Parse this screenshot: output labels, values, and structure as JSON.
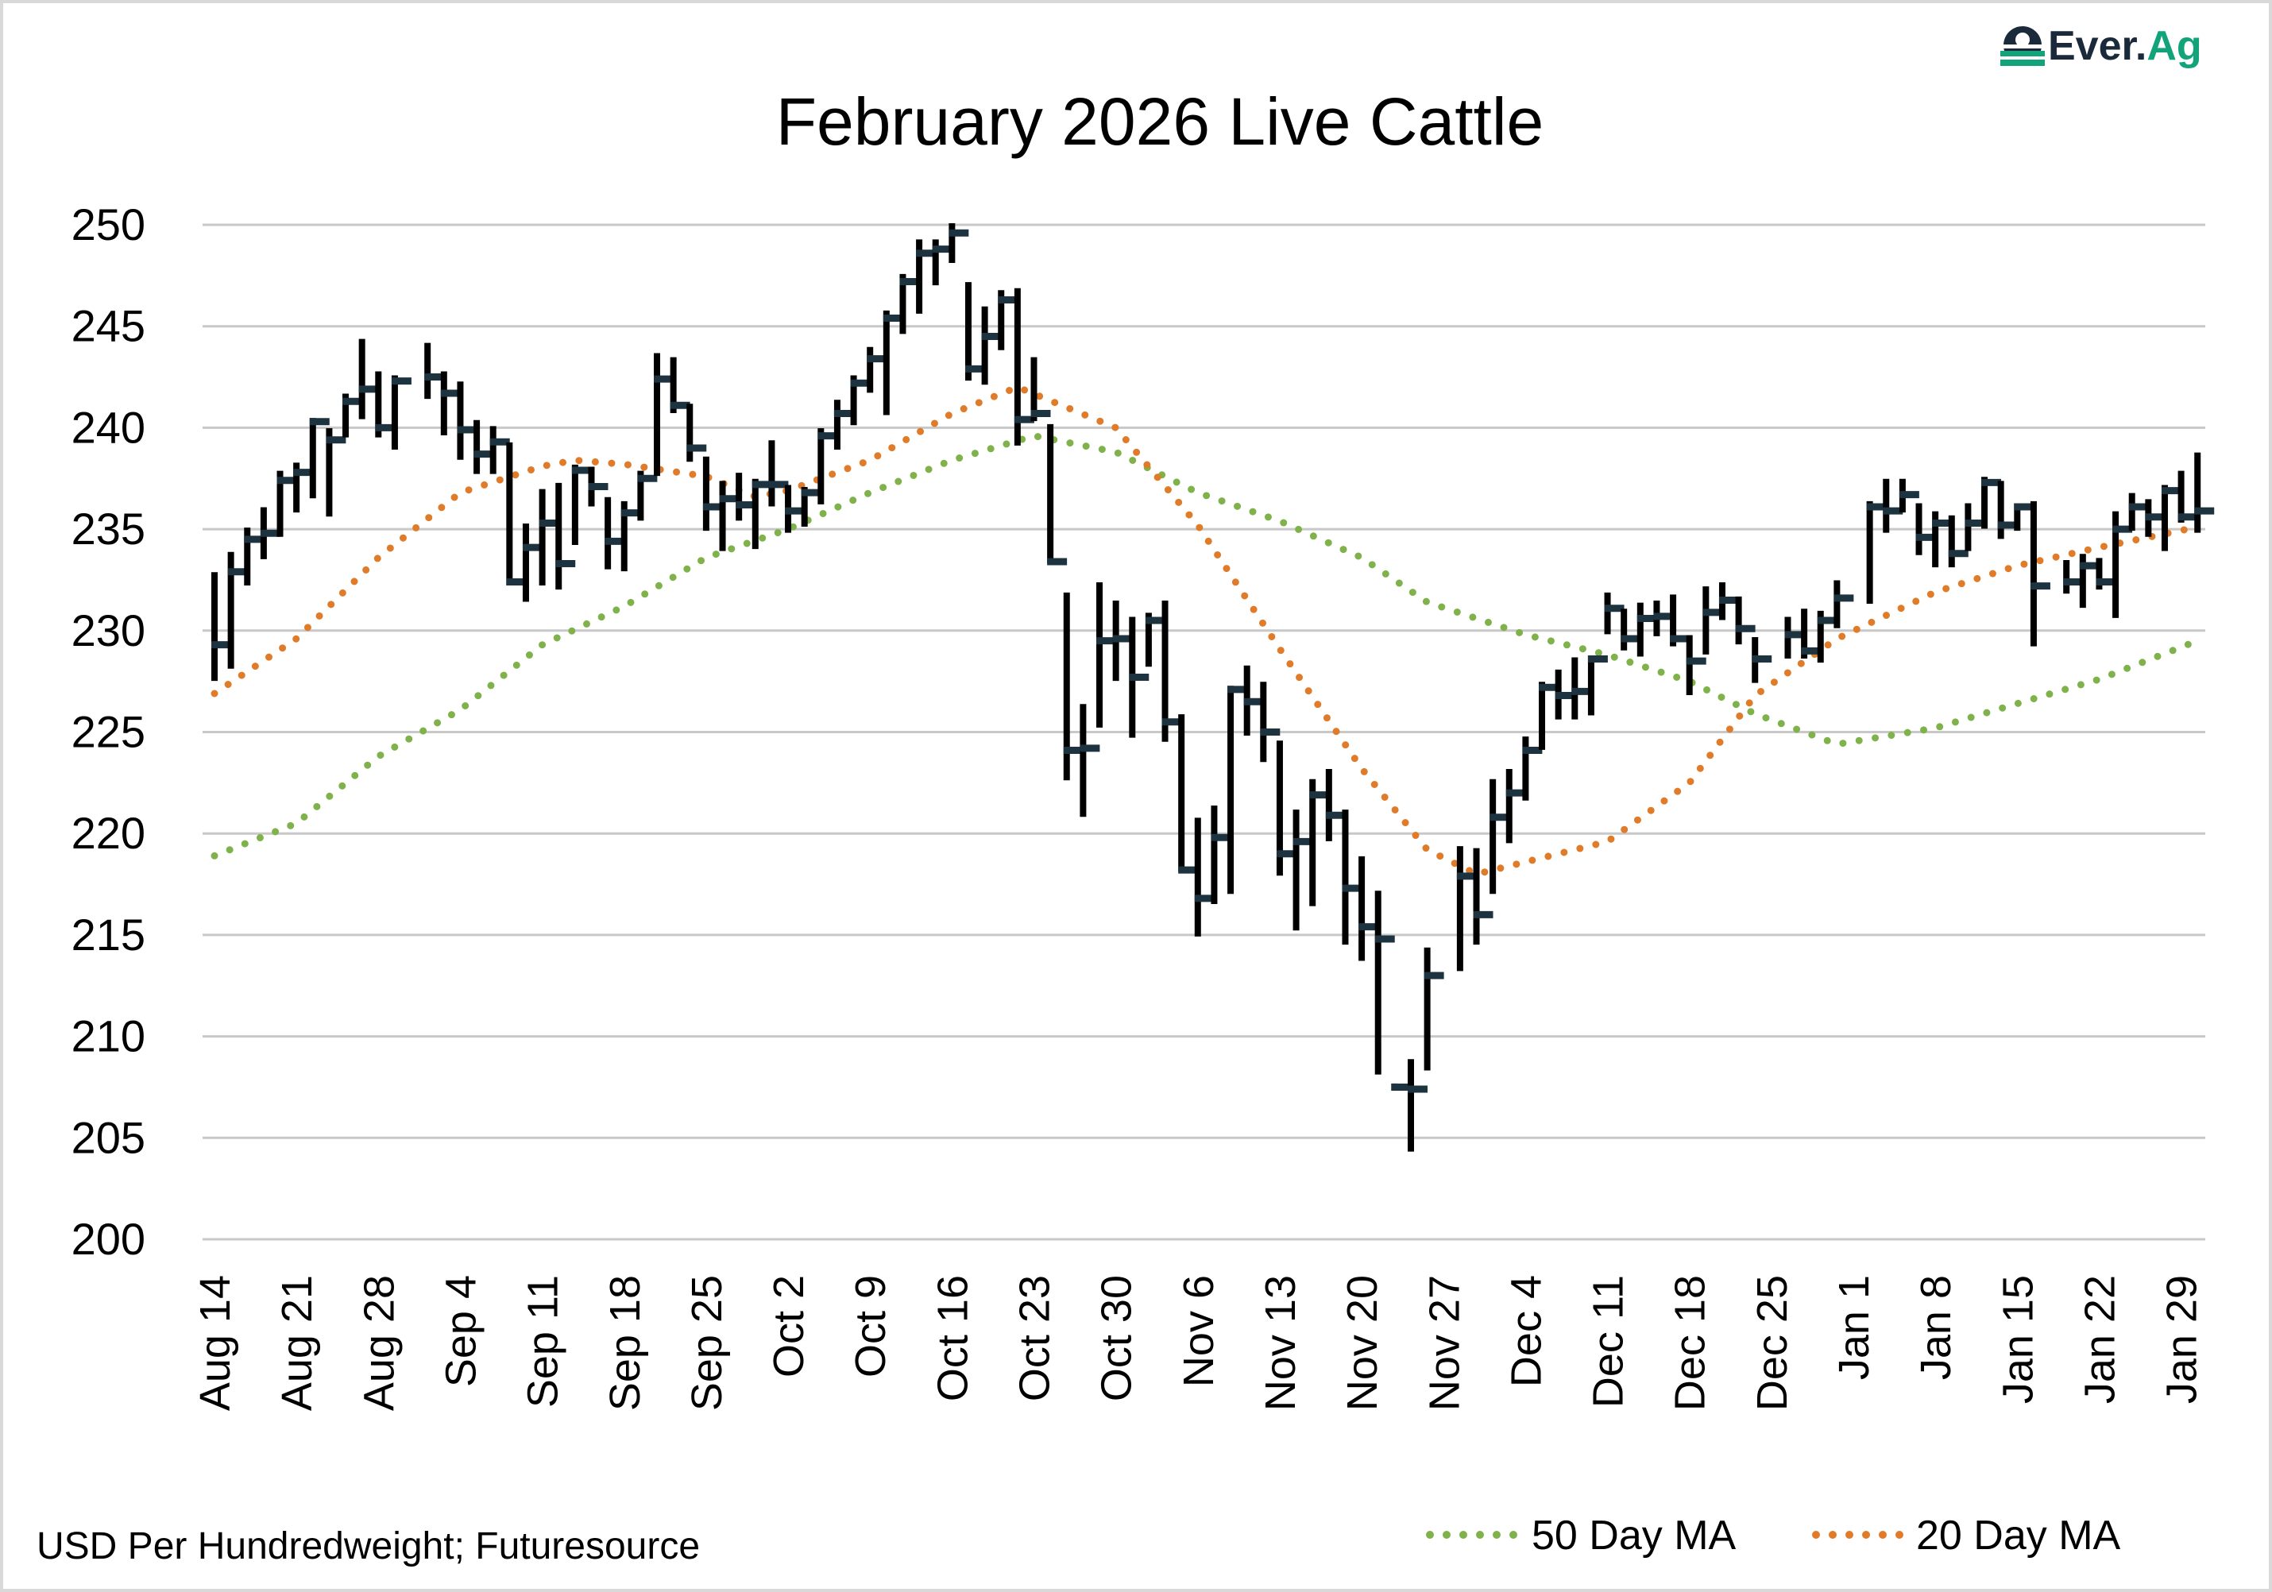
{
  "logo": {
    "text_dark": "Ever.",
    "text_green": "Ag",
    "colors": {
      "dark": "#1b2a3a",
      "green": "#12a37a"
    }
  },
  "chart_data": {
    "type": "ohlc-bar",
    "title": "February 2026 Live Cattle",
    "source_note": "USD Per Hundredweight; Futuresource",
    "ylim": [
      200,
      250
    ],
    "yticks": [
      200,
      205,
      210,
      215,
      220,
      225,
      230,
      235,
      240,
      245,
      250
    ],
    "grid": true,
    "legend_position": "bottom-right",
    "xticks": [
      {
        "date": "2025-08-14",
        "label": "Aug 14"
      },
      {
        "date": "2025-08-21",
        "label": "Aug 21"
      },
      {
        "date": "2025-08-28",
        "label": "Aug 28"
      },
      {
        "date": "2025-09-04",
        "label": "Sep 4"
      },
      {
        "date": "2025-09-11",
        "label": "Sep 11"
      },
      {
        "date": "2025-09-18",
        "label": "Sep 18"
      },
      {
        "date": "2025-09-25",
        "label": "Sep 25"
      },
      {
        "date": "2025-10-02",
        "label": "Oct 2"
      },
      {
        "date": "2025-10-09",
        "label": "Oct 9"
      },
      {
        "date": "2025-10-16",
        "label": "Oct 16"
      },
      {
        "date": "2025-10-23",
        "label": "Oct 23"
      },
      {
        "date": "2025-10-30",
        "label": "Oct 30"
      },
      {
        "date": "2025-11-06",
        "label": "Nov 6"
      },
      {
        "date": "2025-11-13",
        "label": "Nov 13"
      },
      {
        "date": "2025-11-20",
        "label": "Nov 20"
      },
      {
        "date": "2025-11-27",
        "label": "Nov 27"
      },
      {
        "date": "2025-12-04",
        "label": "Dec 4"
      },
      {
        "date": "2025-12-11",
        "label": "Dec 11"
      },
      {
        "date": "2025-12-18",
        "label": "Dec 18"
      },
      {
        "date": "2025-12-25",
        "label": "Dec 25"
      },
      {
        "date": "2026-01-01",
        "label": "Jan 1"
      },
      {
        "date": "2026-01-08",
        "label": "Jan 8"
      },
      {
        "date": "2026-01-15",
        "label": "Jan 15"
      },
      {
        "date": "2026-01-22",
        "label": "Jan 22"
      },
      {
        "date": "2026-01-29",
        "label": "Jan 29"
      }
    ],
    "bar_fields": [
      "date",
      "high",
      "low",
      "close"
    ],
    "bars": [
      [
        "2025-08-14",
        232.8,
        227.6,
        229.3
      ],
      [
        "2025-08-15",
        233.8,
        228.2,
        232.9
      ],
      [
        "2025-08-18",
        235.0,
        232.3,
        234.5
      ],
      [
        "2025-08-19",
        236.0,
        233.6,
        234.8
      ],
      [
        "2025-08-20",
        237.8,
        234.7,
        237.4
      ],
      [
        "2025-08-21",
        238.2,
        235.9,
        237.8
      ],
      [
        "2025-08-22",
        240.4,
        236.6,
        240.3
      ],
      [
        "2025-08-25",
        239.9,
        235.7,
        239.4
      ],
      [
        "2025-08-26",
        241.6,
        239.6,
        241.3
      ],
      [
        "2025-08-27",
        244.3,
        240.5,
        241.9
      ],
      [
        "2025-08-28",
        242.7,
        239.6,
        240.0
      ],
      [
        "2025-08-29",
        242.5,
        239.0,
        242.3
      ],
      [
        "2025-09-02",
        244.1,
        241.5,
        242.5
      ],
      [
        "2025-09-03",
        242.7,
        239.7,
        241.7
      ],
      [
        "2025-09-04",
        242.2,
        238.5,
        239.9
      ],
      [
        "2025-09-05",
        240.3,
        237.8,
        238.7
      ],
      [
        "2025-09-08",
        240.0,
        237.8,
        239.3
      ],
      [
        "2025-09-09",
        239.2,
        232.3,
        232.4
      ],
      [
        "2025-09-10",
        235.2,
        231.5,
        234.1
      ],
      [
        "2025-09-11",
        236.9,
        232.3,
        235.3
      ],
      [
        "2025-09-12",
        237.2,
        232.1,
        233.3
      ],
      [
        "2025-09-15",
        238.1,
        234.3,
        237.9
      ],
      [
        "2025-09-16",
        238.0,
        236.2,
        237.1
      ],
      [
        "2025-09-17",
        236.5,
        233.1,
        234.4
      ],
      [
        "2025-09-18",
        236.3,
        233.0,
        235.8
      ],
      [
        "2025-09-19",
        237.8,
        235.5,
        237.5
      ],
      [
        "2025-09-22",
        243.6,
        237.7,
        242.4
      ],
      [
        "2025-09-23",
        243.4,
        240.8,
        241.1
      ],
      [
        "2025-09-24",
        241.1,
        238.4,
        239.0
      ],
      [
        "2025-09-25",
        238.5,
        235.0,
        236.1
      ],
      [
        "2025-09-26",
        237.3,
        234.0,
        236.5
      ],
      [
        "2025-09-29",
        237.7,
        235.5,
        236.2
      ],
      [
        "2025-09-30",
        237.4,
        234.1,
        237.2
      ],
      [
        "2025-10-01",
        239.3,
        236.2,
        237.2
      ],
      [
        "2025-10-02",
        237.1,
        234.9,
        235.9
      ],
      [
        "2025-10-03",
        237.0,
        235.2,
        236.8
      ],
      [
        "2025-10-06",
        239.9,
        236.3,
        239.6
      ],
      [
        "2025-10-07",
        241.3,
        239.0,
        240.7
      ],
      [
        "2025-10-08",
        242.5,
        240.2,
        242.2
      ],
      [
        "2025-10-09",
        243.9,
        241.8,
        243.4
      ],
      [
        "2025-10-10",
        245.7,
        240.7,
        245.4
      ],
      [
        "2025-10-13",
        247.5,
        244.7,
        247.2
      ],
      [
        "2025-10-14",
        249.2,
        245.7,
        248.6
      ],
      [
        "2025-10-15",
        249.2,
        247.1,
        248.8
      ],
      [
        "2025-10-16",
        250.0,
        248.2,
        249.6
      ],
      [
        "2025-10-17",
        247.1,
        242.4,
        242.9
      ],
      [
        "2025-10-20",
        245.9,
        242.2,
        244.5
      ],
      [
        "2025-10-21",
        246.7,
        243.9,
        246.3
      ],
      [
        "2025-10-22",
        246.8,
        239.2,
        240.4
      ],
      [
        "2025-10-23",
        243.4,
        240.4,
        240.7
      ],
      [
        "2025-10-24",
        240.1,
        233.4,
        233.4
      ],
      [
        "2025-10-27",
        231.8,
        222.7,
        224.1
      ],
      [
        "2025-10-28",
        226.3,
        220.9,
        224.2
      ],
      [
        "2025-10-29",
        232.3,
        225.3,
        229.5
      ],
      [
        "2025-10-30",
        231.4,
        227.6,
        229.6
      ],
      [
        "2025-10-31",
        230.6,
        224.8,
        227.7
      ],
      [
        "2025-11-03",
        230.8,
        228.3,
        230.5
      ],
      [
        "2025-11-04",
        231.4,
        224.6,
        225.5
      ],
      [
        "2025-11-05",
        225.8,
        218.2,
        218.2
      ],
      [
        "2025-11-06",
        220.7,
        215.0,
        216.8
      ],
      [
        "2025-11-07",
        221.3,
        216.6,
        219.8
      ],
      [
        "2025-11-10",
        227.2,
        217.1,
        227.1
      ],
      [
        "2025-11-11",
        228.2,
        224.9,
        226.5
      ],
      [
        "2025-11-12",
        227.4,
        223.6,
        225.0
      ],
      [
        "2025-11-13",
        224.5,
        218.0,
        219.0
      ],
      [
        "2025-11-14",
        221.1,
        215.3,
        219.6
      ],
      [
        "2025-11-17",
        222.6,
        216.5,
        221.9
      ],
      [
        "2025-11-18",
        223.1,
        219.7,
        220.9
      ],
      [
        "2025-11-19",
        221.1,
        214.6,
        217.3
      ],
      [
        "2025-11-20",
        218.8,
        213.8,
        215.4
      ],
      [
        "2025-11-21",
        217.1,
        208.2,
        214.8
      ],
      [
        "2025-11-24",
        207.6,
        207.4,
        207.5
      ],
      [
        "2025-11-25",
        208.8,
        204.4,
        207.4
      ],
      [
        "2025-11-26",
        214.3,
        208.4,
        213.0
      ],
      [
        "2025-11-28",
        219.3,
        213.3,
        217.9
      ],
      [
        "2025-12-01",
        219.2,
        214.6,
        216.0
      ],
      [
        "2025-12-02",
        222.6,
        217.1,
        220.8
      ],
      [
        "2025-12-03",
        223.1,
        219.6,
        222.0
      ],
      [
        "2025-12-04",
        224.7,
        221.7,
        224.1
      ],
      [
        "2025-12-05",
        227.4,
        224.2,
        227.2
      ],
      [
        "2025-12-08",
        228.0,
        225.7,
        226.8
      ],
      [
        "2025-12-09",
        228.6,
        225.7,
        227.0
      ],
      [
        "2025-12-10",
        228.7,
        225.9,
        228.6
      ],
      [
        "2025-12-11",
        231.8,
        229.9,
        231.1
      ],
      [
        "2025-12-12",
        231.0,
        229.1,
        229.6
      ],
      [
        "2025-12-15",
        231.3,
        228.8,
        230.6
      ],
      [
        "2025-12-16",
        231.4,
        229.8,
        230.7
      ],
      [
        "2025-12-17",
        231.7,
        229.3,
        229.6
      ],
      [
        "2025-12-18",
        229.7,
        226.9,
        228.5
      ],
      [
        "2025-12-19",
        232.1,
        228.9,
        230.9
      ],
      [
        "2025-12-22",
        232.3,
        230.6,
        231.5
      ],
      [
        "2025-12-23",
        231.6,
        229.4,
        230.1
      ],
      [
        "2025-12-24",
        229.6,
        227.5,
        228.6
      ],
      [
        "2025-12-26",
        230.6,
        228.7,
        229.8
      ],
      [
        "2025-12-29",
        231.0,
        228.7,
        229.0
      ],
      [
        "2025-12-30",
        230.9,
        228.5,
        230.5
      ],
      [
        "2025-12-31",
        232.4,
        230.2,
        231.6
      ],
      [
        "2026-01-02",
        236.3,
        231.4,
        236.1
      ],
      [
        "2026-01-05",
        237.4,
        234.9,
        235.9
      ],
      [
        "2026-01-06",
        237.4,
        235.9,
        236.7
      ],
      [
        "2026-01-07",
        236.2,
        233.8,
        234.6
      ],
      [
        "2026-01-08",
        235.8,
        233.2,
        235.3
      ],
      [
        "2026-01-09",
        235.6,
        233.2,
        233.8
      ],
      [
        "2026-01-12",
        236.2,
        234.0,
        235.3
      ],
      [
        "2026-01-13",
        237.5,
        235.1,
        237.3
      ],
      [
        "2026-01-14",
        237.3,
        234.6,
        235.2
      ],
      [
        "2026-01-15",
        236.2,
        235.0,
        236.1
      ],
      [
        "2026-01-16",
        236.3,
        229.3,
        232.2
      ],
      [
        "2026-01-20",
        233.4,
        231.9,
        232.4
      ],
      [
        "2026-01-21",
        233.7,
        231.2,
        233.2
      ],
      [
        "2026-01-22",
        233.5,
        232.1,
        232.4
      ],
      [
        "2026-01-23",
        235.8,
        230.7,
        235.0
      ],
      [
        "2026-01-26",
        236.7,
        235.0,
        236.1
      ],
      [
        "2026-01-27",
        236.4,
        234.7,
        235.6
      ],
      [
        "2026-01-28",
        237.1,
        234.0,
        236.9
      ],
      [
        "2026-01-29",
        237.8,
        235.4,
        235.6
      ],
      [
        "2026-01-30",
        238.7,
        234.9,
        235.9
      ]
    ],
    "series": [
      {
        "name": "50 Day MA",
        "color": "#7fb24a",
        "style": "dotted",
        "points": [
          [
            "2025-08-14",
            218.9
          ],
          [
            "2025-08-21",
            220.5
          ],
          [
            "2025-08-28",
            223.8
          ],
          [
            "2025-09-04",
            226.1
          ],
          [
            "2025-09-11",
            229.3
          ],
          [
            "2025-09-18",
            231.2
          ],
          [
            "2025-09-25",
            233.6
          ],
          [
            "2025-10-02",
            235.0
          ],
          [
            "2025-10-09",
            236.8
          ],
          [
            "2025-10-16",
            238.4
          ],
          [
            "2025-10-23",
            239.6
          ],
          [
            "2025-10-30",
            238.8
          ],
          [
            "2025-11-06",
            236.8
          ],
          [
            "2025-11-13",
            235.4
          ],
          [
            "2025-11-20",
            233.6
          ],
          [
            "2025-11-26",
            231.4
          ],
          [
            "2025-12-04",
            229.8
          ],
          [
            "2025-12-11",
            228.8
          ],
          [
            "2025-12-18",
            227.5
          ],
          [
            "2025-12-24",
            225.9
          ],
          [
            "2025-12-31",
            224.4
          ],
          [
            "2026-01-08",
            225.2
          ],
          [
            "2026-01-15",
            226.4
          ],
          [
            "2026-01-22",
            227.6
          ],
          [
            "2026-01-30",
            229.5
          ]
        ]
      },
      {
        "name": "20 Day MA",
        "color": "#e07b2a",
        "style": "dotted",
        "points": [
          [
            "2025-08-14",
            226.9
          ],
          [
            "2025-08-21",
            229.6
          ],
          [
            "2025-08-28",
            233.6
          ],
          [
            "2025-09-04",
            236.8
          ],
          [
            "2025-09-11",
            238.1
          ],
          [
            "2025-09-15",
            238.4
          ],
          [
            "2025-09-18",
            238.2
          ],
          [
            "2025-09-25",
            237.6
          ],
          [
            "2025-09-30",
            236.6
          ],
          [
            "2025-10-02",
            236.9
          ],
          [
            "2025-10-09",
            238.4
          ],
          [
            "2025-10-16",
            240.7
          ],
          [
            "2025-10-22",
            242.0
          ],
          [
            "2025-10-30",
            240.0
          ],
          [
            "2025-11-06",
            235.2
          ],
          [
            "2025-11-13",
            229.1
          ],
          [
            "2025-11-20",
            223.2
          ],
          [
            "2025-11-26",
            219.2
          ],
          [
            "2025-12-01",
            218.0
          ],
          [
            "2025-12-04",
            218.6
          ],
          [
            "2025-12-11",
            219.6
          ],
          [
            "2025-12-18",
            222.5
          ],
          [
            "2025-12-24",
            226.8
          ],
          [
            "2025-12-31",
            229.6
          ],
          [
            "2026-01-08",
            231.9
          ],
          [
            "2026-01-15",
            233.2
          ],
          [
            "2026-01-22",
            234.1
          ],
          [
            "2026-01-30",
            235.1
          ]
        ]
      }
    ]
  }
}
